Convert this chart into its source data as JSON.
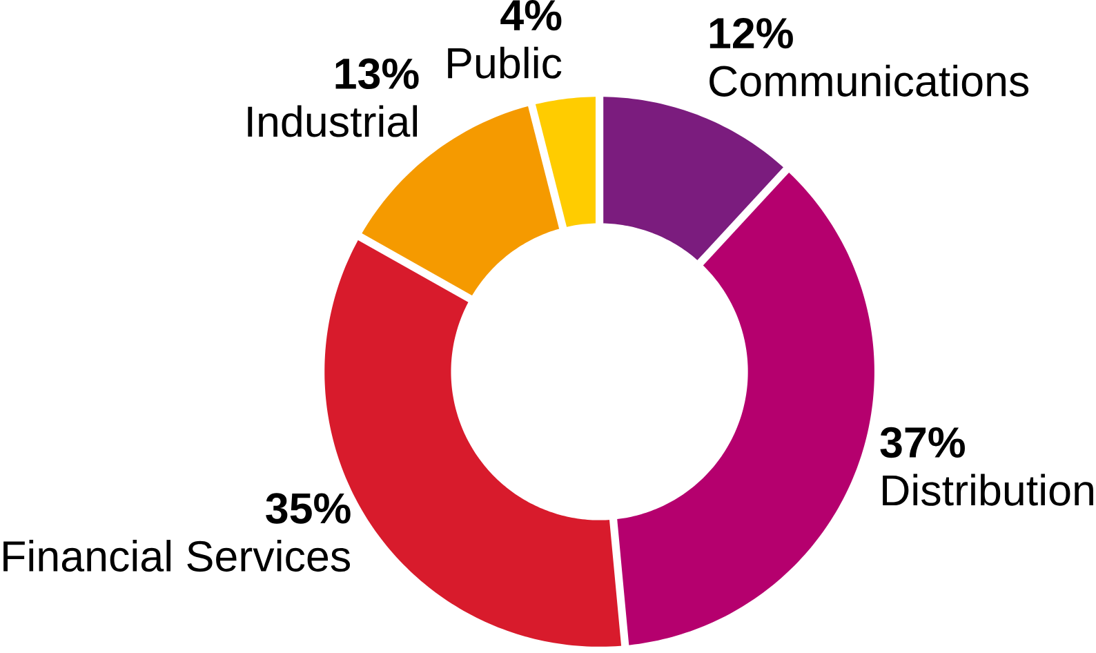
{
  "chart_data": {
    "type": "donut",
    "categories": [
      "Communications",
      "Distribution",
      "Financial Services",
      "Industrial",
      "Public"
    ],
    "values": [
      12,
      37,
      35,
      13,
      4
    ],
    "value_labels": [
      "12%",
      "37%",
      "35%",
      "13%",
      "4%"
    ],
    "colors": [
      "#7b1c7e",
      "#b5006e",
      "#d81b2c",
      "#f59a00",
      "#ffcc00"
    ]
  }
}
